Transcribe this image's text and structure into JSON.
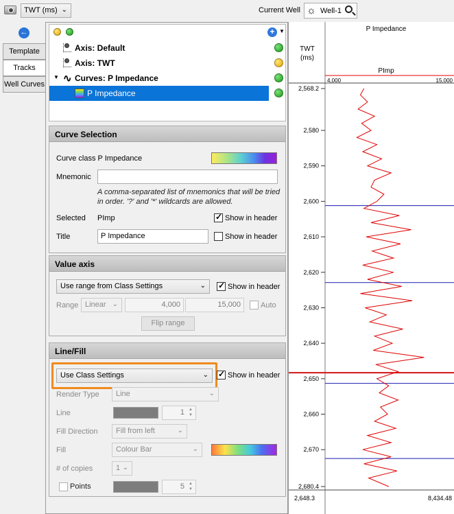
{
  "toolbar": {
    "domain_value": "TWT (ms)",
    "current_well_label": "Current Well",
    "well_name": "Well-1"
  },
  "tabs": [
    {
      "label": "Template",
      "active": false
    },
    {
      "label": "Tracks",
      "active": true
    },
    {
      "label": "Well Curves",
      "active": false
    }
  ],
  "tree": {
    "items": [
      {
        "label": "Axis: Default",
        "status": "green"
      },
      {
        "label": "Axis: TWT",
        "status": "yellow"
      },
      {
        "label": "Curves: P Impedance",
        "status": "green"
      },
      {
        "label": "P Impedance",
        "status": "green",
        "selected": true
      }
    ]
  },
  "curve_selection": {
    "title": "Curve Selection",
    "curve_class_label": "Curve class",
    "curve_class_value": "P Impedance",
    "mnemonic_label": "Mnemonic",
    "mnemonic_value": "",
    "mnemonic_hint_1": "A comma-separated list of mnemonics that will be tried",
    "mnemonic_hint_2": "in order. '?' and '*' wildcards are allowed.",
    "selected_label": "Selected",
    "selected_value": "PImp",
    "title_label": "Title",
    "title_value": "P Impedance",
    "show_in_header": "Show in header",
    "selected_show_checked": true,
    "title_show_checked": false
  },
  "value_axis": {
    "title": "Value axis",
    "range_source": "Use range from Class Settings",
    "show_in_header": "Show in header",
    "show_checked": true,
    "range_label": "Range",
    "scale": "Linear",
    "min": "4,000",
    "max": "15,000",
    "auto_label": "Auto",
    "flip_button": "Flip range"
  },
  "line_fill": {
    "title": "Line/Fill",
    "style_source": "Use Class Settings",
    "show_in_header": "Show in header",
    "show_checked": true,
    "render_type_label": "Render Type",
    "render_type_value": "Line",
    "line_label": "Line",
    "line_width": "1",
    "fill_direction_label": "Fill Direction",
    "fill_direction_value": "Fill from left",
    "fill_label": "Fill",
    "fill_value": "Colour Bar",
    "copies_label": "# of copies",
    "copies_value": "1",
    "points_label": "Points",
    "points_size": "5"
  },
  "track": {
    "title": "P Impedance",
    "axis_title_1": "TWT",
    "axis_title_2": "(ms)",
    "curve_mnemonic": "PImp",
    "scale_min": "4,000",
    "scale_max": "15,000",
    "footer_depth": "2,648.3",
    "footer_value": "8,434.48",
    "curve_color": "#e00000",
    "marker_color": "#1b1bb0",
    "cursor_color": "#d21414"
  },
  "chart_data": {
    "type": "line",
    "title": "P Impedance",
    "xlabel": "PImp",
    "ylabel": "TWT (ms)",
    "xlim": [
      4000,
      15000
    ],
    "ylim": [
      2568.2,
      2680.4
    ],
    "y_ticks": [
      "2,568.2",
      "2,580",
      "2,590",
      "2,600",
      "2,610",
      "2,620",
      "2,630",
      "2,640",
      "2,650",
      "2,660",
      "2,670",
      "2,680.4"
    ],
    "markers_twt": [
      2601.2,
      2622.9,
      2651.3,
      2672.5
    ],
    "cursor_twt": 2648.3,
    "series": [
      {
        "name": "PImp",
        "twt": [
          2568.2,
          2570,
          2572,
          2574,
          2576,
          2578,
          2580,
          2582,
          2584,
          2586,
          2588,
          2590,
          2592,
          2594,
          2596,
          2598,
          2600,
          2602,
          2604,
          2606,
          2608,
          2610,
          2612,
          2614,
          2616,
          2618,
          2620,
          2622,
          2624,
          2626,
          2628,
          2630,
          2632,
          2634,
          2636,
          2638,
          2640,
          2642,
          2644,
          2646,
          2648,
          2650,
          2652,
          2654,
          2656,
          2658,
          2660,
          2662,
          2664,
          2666,
          2668,
          2670,
          2672,
          2674,
          2676,
          2678,
          2680.4
        ],
        "values": [
          7300,
          7000,
          7600,
          6800,
          8200,
          7100,
          7900,
          6700,
          8400,
          7200,
          8800,
          7600,
          9600,
          8200,
          7900,
          9000,
          8400,
          7300,
          10300,
          7900,
          11300,
          7500,
          10400,
          8000,
          9800,
          7200,
          9800,
          7600,
          10500,
          7000,
          11400,
          7400,
          9200,
          7800,
          10600,
          8200,
          9700,
          8100,
          12400,
          8300,
          10200,
          8400,
          9400,
          8600,
          10200,
          8700,
          9300,
          8200,
          10000,
          7600,
          9600,
          7200,
          9600,
          7300,
          10100,
          7700,
          9400
        ]
      }
    ]
  }
}
